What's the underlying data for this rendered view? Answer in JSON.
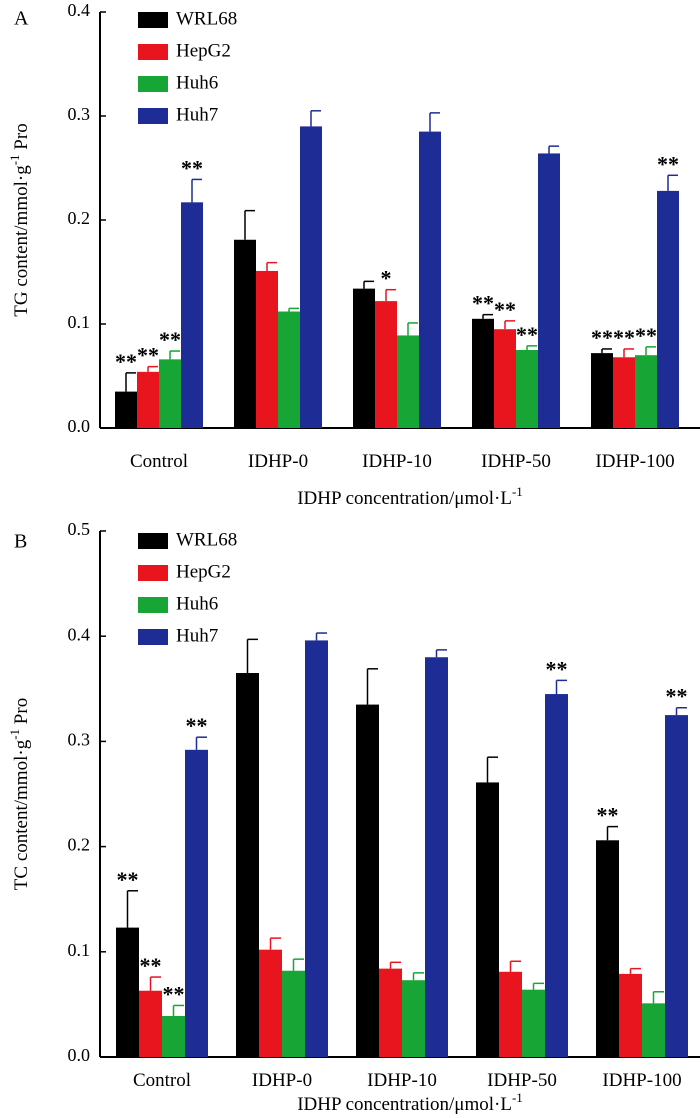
{
  "chart_data": [
    {
      "type": "bar",
      "panel_label": "A",
      "ylabel": {
        "main": "TG content/mmol·g",
        "sup": "-1",
        "tail": " Pro"
      },
      "xlabel": {
        "main": "IDHP concentration/μmol·L",
        "sup": "-1"
      },
      "ylim": [
        0,
        0.4
      ],
      "yticks": [
        "0.0",
        "0.1",
        "0.2",
        "0.3",
        "0.4"
      ],
      "categories": [
        "Control",
        "IDHP-0",
        "IDHP-10",
        "IDHP-50",
        "IDHP-100"
      ],
      "series": [
        {
          "name": "WRL68",
          "color": "#000000",
          "values": [
            0.035,
            0.181,
            0.134,
            0.105,
            0.072
          ],
          "errors": [
            0.018,
            0.028,
            0.007,
            0.004,
            0.004
          ],
          "marks": [
            "**",
            "",
            "",
            "**",
            "**"
          ]
        },
        {
          "name": "HepG2",
          "color": "#e8141e",
          "values": [
            0.054,
            0.151,
            0.122,
            0.095,
            0.068
          ],
          "errors": [
            0.005,
            0.008,
            0.011,
            0.008,
            0.008
          ],
          "marks": [
            "**",
            "",
            "*",
            "**",
            "**"
          ]
        },
        {
          "name": "Huh6",
          "color": "#17a535",
          "values": [
            0.066,
            0.112,
            0.089,
            0.075,
            0.07
          ],
          "errors": [
            0.008,
            0.003,
            0.012,
            0.004,
            0.008
          ],
          "marks": [
            "**",
            "",
            "",
            "**",
            "**"
          ]
        },
        {
          "name": "Huh7",
          "color": "#1e2c95",
          "values": [
            0.217,
            0.29,
            0.285,
            0.264,
            0.228
          ],
          "errors": [
            0.022,
            0.015,
            0.018,
            0.007,
            0.015
          ],
          "marks": [
            "**",
            "",
            "",
            "",
            "**"
          ]
        }
      ]
    },
    {
      "type": "bar",
      "panel_label": "B",
      "ylabel": {
        "main": "TC content/mmol·g",
        "sup": "-1",
        "tail": " Pro"
      },
      "xlabel": {
        "main": "IDHP concentration/μmol·L",
        "sup": "-1"
      },
      "ylim": [
        0,
        0.5
      ],
      "yticks": [
        "0.0",
        "0.1",
        "0.2",
        "0.3",
        "0.4",
        "0.5"
      ],
      "categories": [
        "Control",
        "IDHP-0",
        "IDHP-10",
        "IDHP-50",
        "IDHP-100"
      ],
      "series": [
        {
          "name": "WRL68",
          "color": "#000000",
          "values": [
            0.123,
            0.365,
            0.335,
            0.261,
            0.206
          ],
          "errors": [
            0.035,
            0.032,
            0.034,
            0.024,
            0.013
          ],
          "marks": [
            "**",
            "",
            "",
            "",
            "**"
          ]
        },
        {
          "name": "HepG2",
          "color": "#e8141e",
          "values": [
            0.063,
            0.102,
            0.084,
            0.081,
            0.079
          ],
          "errors": [
            0.013,
            0.011,
            0.006,
            0.01,
            0.005
          ],
          "marks": [
            "**",
            "",
            "",
            "",
            ""
          ]
        },
        {
          "name": "Huh6",
          "color": "#17a535",
          "values": [
            0.039,
            0.082,
            0.073,
            0.064,
            0.051
          ],
          "errors": [
            0.01,
            0.011,
            0.007,
            0.006,
            0.011
          ],
          "marks": [
            "**",
            "",
            "",
            "",
            ""
          ]
        },
        {
          "name": "Huh7",
          "color": "#1e2c95",
          "values": [
            0.292,
            0.396,
            0.38,
            0.345,
            0.325
          ],
          "errors": [
            0.012,
            0.007,
            0.007,
            0.013,
            0.007
          ],
          "marks": [
            "**",
            "",
            "",
            "**",
            "**"
          ]
        }
      ]
    }
  ]
}
